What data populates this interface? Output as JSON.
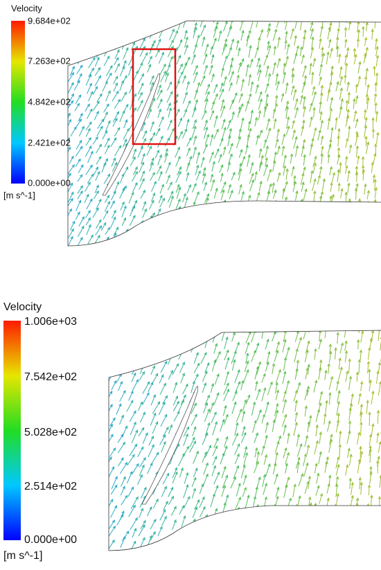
{
  "panels": [
    {
      "legend": {
        "title": "Velocity",
        "ticks": [
          "9.684e+02",
          "7.263e+02",
          "4.842e+02",
          "2.421e+02",
          "0.000e+00"
        ],
        "unit": "[m s^-1]"
      }
    },
    {
      "legend": {
        "title": "Velocity",
        "ticks": [
          "1.006e+03",
          "7.542e+02",
          "5.028e+02",
          "2.514e+02",
          "0.000e+00"
        ],
        "unit": "[m s^-1]"
      }
    }
  ]
}
